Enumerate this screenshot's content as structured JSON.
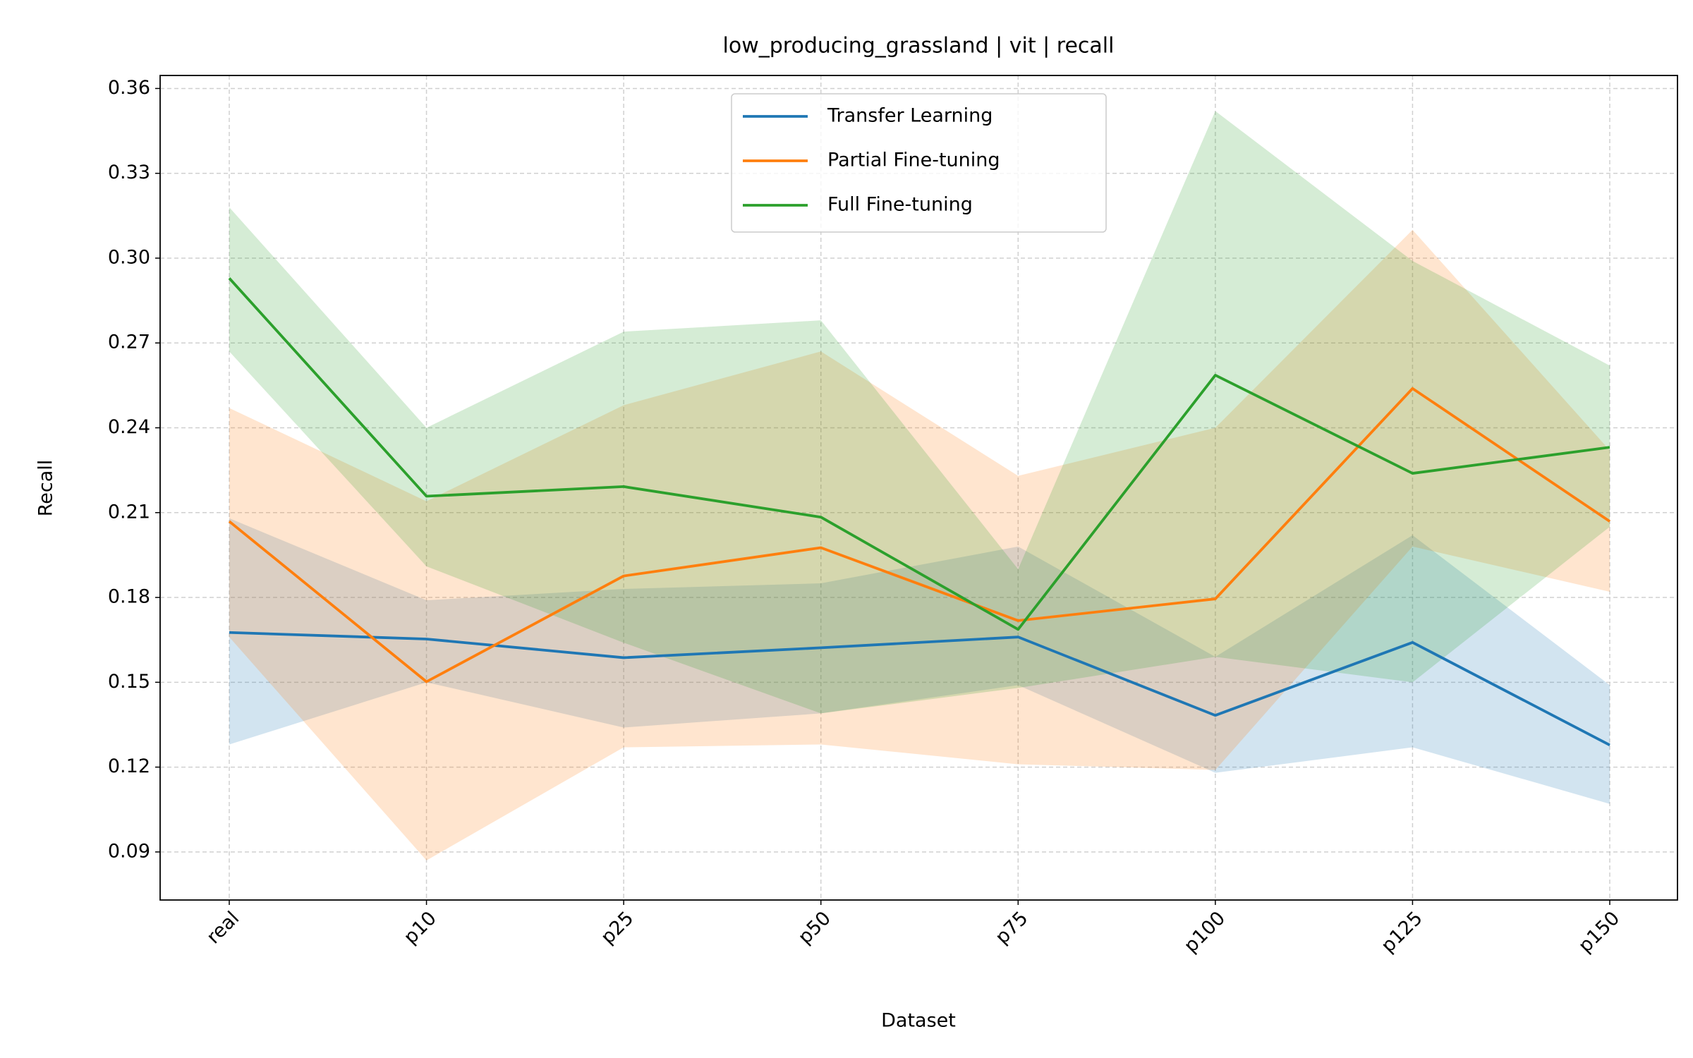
{
  "chart_data": {
    "type": "line",
    "title": "low_producing_grassland | vit | recall",
    "x_label": "Dataset",
    "y_label": "Recall",
    "categories": [
      "real",
      "p10",
      "p25",
      "p50",
      "p75",
      "p100",
      "p125",
      "p150"
    ],
    "ylim": [
      0.073,
      0.3646
    ],
    "yticks": [
      {
        "value": 0.09,
        "label": "0.09"
      },
      {
        "value": 0.12,
        "label": "0.12"
      },
      0.15,
      0.18,
      0.21,
      0.24,
      0.27,
      {
        "value": 0.3,
        "label": "0.30"
      },
      0.33,
      0.36
    ],
    "grid": true,
    "legend": "upper center",
    "series": [
      {
        "name": "Transfer Learning",
        "color": "#1f77b4",
        "values": [
          0.1676,
          0.1653,
          0.1587,
          0.1622,
          0.166,
          0.1383,
          0.1641,
          0.1278
        ],
        "lower": [
          0.128,
          0.15,
          0.134,
          0.139,
          0.149,
          0.118,
          0.127,
          0.107
        ],
        "upper": [
          0.208,
          0.179,
          0.183,
          0.185,
          0.198,
          0.159,
          0.202,
          0.149
        ]
      },
      {
        "name": "Partial Fine-tuning",
        "color": "#ff7f0e",
        "values": [
          0.2069,
          0.1502,
          0.1876,
          0.1976,
          0.1718,
          0.1795,
          0.2539,
          0.2069
        ],
        "lower": [
          0.166,
          0.087,
          0.127,
          0.128,
          0.121,
          0.119,
          0.198,
          0.182
        ],
        "upper": [
          0.247,
          0.214,
          0.248,
          0.267,
          0.223,
          0.24,
          0.31,
          0.232
        ]
      },
      {
        "name": "Full Fine-tuning",
        "color": "#2ca02c",
        "values": [
          0.2929,
          0.2158,
          0.2192,
          0.2084,
          0.1687,
          0.2586,
          0.2239,
          0.2331
        ],
        "lower": [
          0.267,
          0.191,
          0.164,
          0.139,
          0.148,
          0.159,
          0.15,
          0.205
        ],
        "upper": [
          0.318,
          0.24,
          0.274,
          0.278,
          0.19,
          0.352,
          0.299,
          0.262
        ]
      }
    ]
  }
}
